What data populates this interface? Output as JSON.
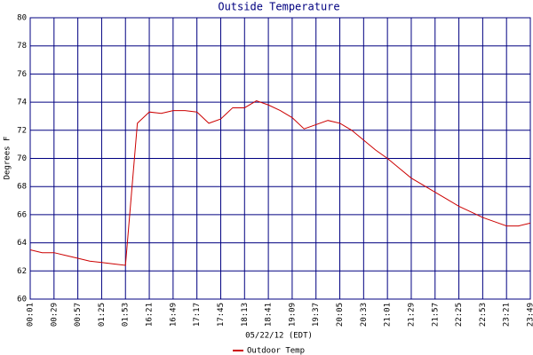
{
  "chart_data": {
    "type": "line",
    "title": "Outside Temperature",
    "y_label": "Degrees F",
    "x_label": "05/22/12 (EDT)",
    "categories": [
      "00:01",
      null,
      "00:29",
      null,
      "00:57",
      null,
      "01:25",
      null,
      "01:53",
      null,
      "16:21",
      null,
      "16:49",
      null,
      "17:17",
      null,
      "17:45",
      null,
      "18:13",
      null,
      "18:41",
      null,
      "19:09",
      null,
      "19:37",
      null,
      "20:05",
      null,
      "20:33",
      null,
      "21:01",
      null,
      "21:29",
      null,
      "21:57",
      null,
      "22:25",
      null,
      "22:53",
      null,
      "23:21",
      null,
      "23:49"
    ],
    "series": [
      {
        "name": "Outdoor Temp",
        "color": "#cc0000",
        "values": [
          63.5,
          63.3,
          63.3,
          63.1,
          62.9,
          62.7,
          62.6,
          62.5,
          62.4,
          72.5,
          73.3,
          73.2,
          73.4,
          73.4,
          73.3,
          72.5,
          72.8,
          73.6,
          73.6,
          74.1,
          73.8,
          73.4,
          72.9,
          72.1,
          72.4,
          72.7,
          72.5,
          72.0,
          71.3,
          70.6,
          70.0,
          69.3,
          68.6,
          68.1,
          67.6,
          67.1,
          66.6,
          66.2,
          65.8,
          65.5,
          65.2,
          65.2,
          65.4
        ]
      }
    ],
    "ylim": [
      60,
      80
    ],
    "yticks": [
      60,
      62,
      64,
      66,
      68,
      70,
      72,
      74,
      76,
      78,
      80
    ],
    "grid": true
  }
}
